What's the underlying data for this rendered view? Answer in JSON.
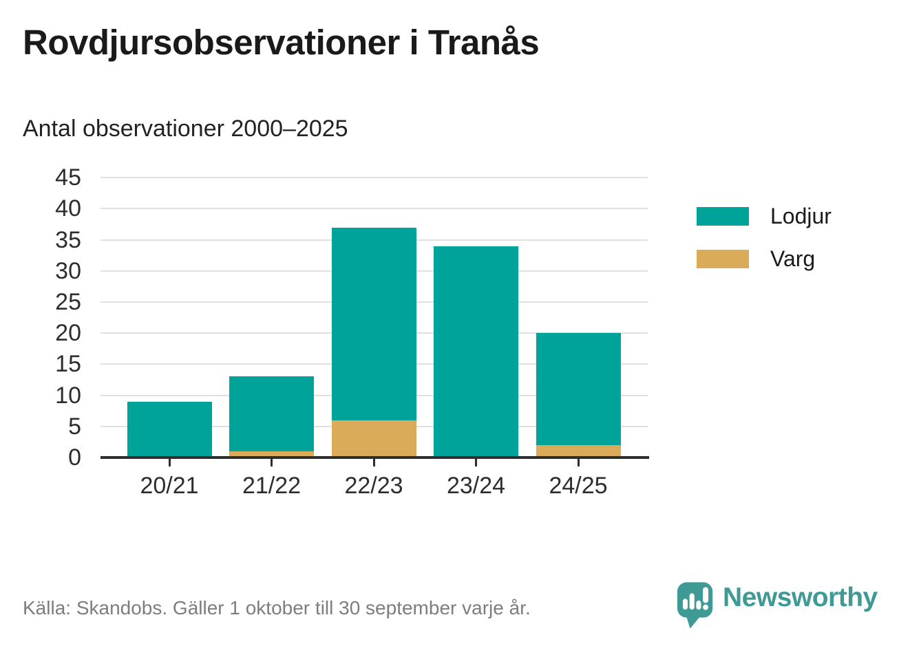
{
  "title": "Rovdjursobservationer i Tranås",
  "subtitle": "Antal observationer 2000–2025",
  "footer": {
    "source": "Källa: Skandobs. Gäller 1 oktober till 30 september varje år."
  },
  "branding": {
    "name": "Newsworthy",
    "logo_icon": "newsworthy-speech-bubble-bar-chart-icon",
    "color": "#3f9a95"
  },
  "legend": [
    {
      "label": "Lodjur",
      "color": "#00a399"
    },
    {
      "label": "Varg",
      "color": "#daac5a"
    }
  ],
  "colors": {
    "lodjur": "#00a399",
    "varg": "#daac5a",
    "axis": "#2d2d2d",
    "gridline": "#e0e0e0",
    "text": "#1a1a1a",
    "muted_text": "#7d7d7d"
  },
  "chart_data": {
    "type": "bar",
    "stacked": true,
    "title": "Rovdjursobservationer i Tranås",
    "subtitle": "Antal observationer 2000–2025",
    "categories": [
      "20/21",
      "21/22",
      "22/23",
      "23/24",
      "24/25"
    ],
    "series": [
      {
        "name": "Lodjur",
        "color": "#00a399",
        "values": [
          9,
          12,
          31,
          34,
          18
        ]
      },
      {
        "name": "Varg",
        "color": "#daac5a",
        "values": [
          0,
          1,
          6,
          0,
          2
        ]
      }
    ],
    "totals": [
      9,
      13,
      37,
      34,
      20
    ],
    "xlabel": "",
    "ylabel": "",
    "ylim": [
      0,
      45
    ],
    "yticks": [
      0,
      5,
      10,
      15,
      20,
      25,
      30,
      35,
      40,
      45
    ],
    "grid": true,
    "legend_position": "right",
    "stack_order_bottom_to_top": [
      "Varg",
      "Lodjur"
    ]
  }
}
